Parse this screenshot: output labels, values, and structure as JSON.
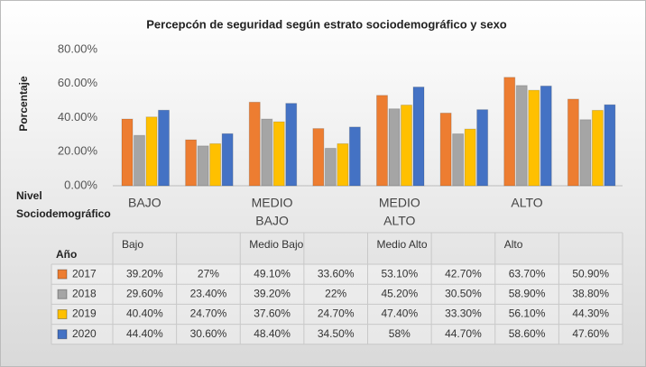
{
  "chart_data": {
    "type": "bar",
    "title": "Percepcón de seguridad según estrato sociodemográfico y sexo",
    "y_label": "Porcentaje",
    "x_label_lines": [
      "Nivel",
      "Sociodemográfico"
    ],
    "axis_categories": [
      [
        "BAJO"
      ],
      [
        "MEDIO",
        "BAJO"
      ],
      [
        "MEDIO",
        "ALTO"
      ],
      [
        "ALTO"
      ]
    ],
    "table_header": "Año",
    "categories": [
      "Bajo",
      null,
      "Medio Bajo",
      null,
      "Medio Alto",
      null,
      "Alto",
      null
    ],
    "series": [
      {
        "name": "2017",
        "color": "#ed7d31",
        "values": [
          39.2,
          27,
          49.1,
          33.6,
          53.1,
          42.7,
          63.7,
          50.9
        ],
        "value_labels": [
          "39.20%",
          "27%",
          "49.10%",
          "33.60%",
          "53.10%",
          "42.70%",
          "63.70%",
          "50.90%"
        ]
      },
      {
        "name": "2018",
        "color": "#a5a5a5",
        "values": [
          29.6,
          23.4,
          39.2,
          22,
          45.2,
          30.5,
          58.9,
          38.8
        ],
        "value_labels": [
          "29.60%",
          "23.40%",
          "39.20%",
          "22%",
          "45.20%",
          "30.50%",
          "58.90%",
          "38.80%"
        ]
      },
      {
        "name": "2019",
        "color": "#ffc000",
        "values": [
          40.4,
          24.7,
          37.6,
          24.7,
          47.4,
          33.3,
          56.1,
          44.3
        ],
        "value_labels": [
          "40.40%",
          "24.70%",
          "37.60%",
          "24.70%",
          "47.40%",
          "33.30%",
          "56.10%",
          "44.30%"
        ]
      },
      {
        "name": "2020",
        "color": "#4472c4",
        "values": [
          44.4,
          30.6,
          48.4,
          34.5,
          58,
          44.7,
          58.6,
          47.6
        ],
        "value_labels": [
          "44.40%",
          "30.60%",
          "48.40%",
          "34.50%",
          "58%",
          "44.70%",
          "58.60%",
          "47.60%"
        ]
      }
    ],
    "ylim": [
      0,
      80
    ],
    "yticks": [
      {
        "value": 0,
        "label": "0.00%"
      },
      {
        "value": 20,
        "label": "20.00%"
      },
      {
        "value": 40,
        "label": "40.00%"
      },
      {
        "value": 60,
        "label": "60.00%"
      },
      {
        "value": 80,
        "label": "80.00%"
      }
    ],
    "grid": false
  }
}
